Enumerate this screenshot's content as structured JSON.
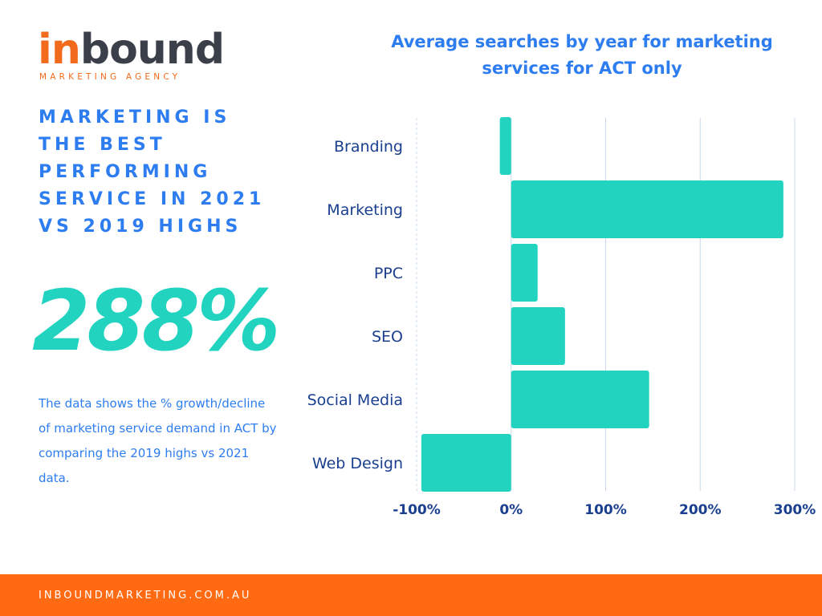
{
  "logo": {
    "word_in": "in",
    "word_bound": "bound",
    "tagline": "MARKETING AGENCY"
  },
  "headline": "MARKETING IS THE BEST PERFORMING SERVICE IN 2021 VS 2019 HIGHS",
  "big_stat": "288%",
  "description": "The data shows the % growth/decline of marketing service demand in ACT by comparing the 2019 highs vs 2021 data.",
  "footer": {
    "url": "INBOUNDMARKETING.COM.AU"
  },
  "colors": {
    "accent_blue": "#2e7df0",
    "bar_teal": "#22d3c0",
    "footer_orange": "#ff6a13",
    "label_navy": "#1a3f8f"
  },
  "chart_data": {
    "type": "bar",
    "orientation": "horizontal",
    "title": "Average searches by year for marketing services for ACT only",
    "xlabel": "",
    "ylabel": "",
    "categories": [
      "Branding",
      "Marketing",
      "PPC",
      "SEO ",
      "Social Media",
      "Web Design"
    ],
    "values": [
      -12,
      288,
      28,
      57,
      146,
      -95
    ],
    "unit": "%",
    "xlim": [
      -100,
      300
    ],
    "ticks": [
      -100,
      0,
      100,
      200,
      300
    ],
    "tick_labels": [
      "-100%",
      "0%",
      "100%",
      "200%",
      "300%"
    ],
    "grid": true
  }
}
